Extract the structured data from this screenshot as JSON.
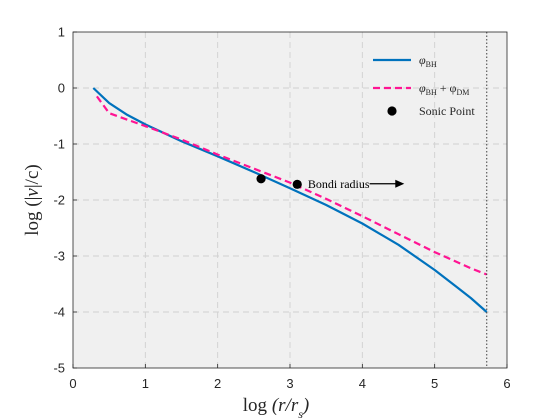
{
  "chart_data": {
    "type": "line",
    "xlabel": "log (r/r_s)",
    "ylabel": "log (|v|/c)",
    "xlim": [
      0,
      6
    ],
    "ylim": [
      -5,
      1
    ],
    "xticks": [
      0,
      1,
      2,
      3,
      4,
      5,
      6
    ],
    "yticks": [
      -5,
      -4,
      -3,
      -2,
      -1,
      0,
      1
    ],
    "grid": true,
    "background": "#f0f0f0",
    "legend_position": "top-right",
    "series": [
      {
        "name": "φ_BH",
        "color": "#0072bd",
        "style": "solid",
        "x": [
          0.28,
          0.5,
          0.75,
          1.0,
          1.5,
          2.0,
          2.5,
          3.0,
          3.5,
          4.0,
          4.5,
          5.0,
          5.3,
          5.5,
          5.72
        ],
        "y": [
          0.0,
          -0.27,
          -0.48,
          -0.65,
          -0.95,
          -1.22,
          -1.5,
          -1.79,
          -2.09,
          -2.42,
          -2.8,
          -3.25,
          -3.55,
          -3.75,
          -4.0
        ]
      },
      {
        "name": "φ_BH + φ_DM",
        "color": "#ff1493",
        "style": "dashed",
        "x": [
          0.33,
          0.5,
          1.0,
          1.5,
          2.0,
          2.5,
          3.0,
          3.5,
          4.0,
          4.5,
          5.0,
          5.5,
          5.72
        ],
        "y": [
          -0.15,
          -0.45,
          -0.68,
          -0.92,
          -1.19,
          -1.44,
          -1.69,
          -1.98,
          -2.29,
          -2.61,
          -2.93,
          -3.22,
          -3.33
        ]
      }
    ],
    "sonic_points": {
      "name": "Sonic Point",
      "color": "#000000",
      "points": [
        {
          "x": 2.6,
          "y": -1.62
        },
        {
          "x": 3.1,
          "y": -1.72
        }
      ]
    },
    "bondi": {
      "label": "Bondi radius",
      "x": 5.72,
      "arrow_from": [
        4.1,
        -1.71
      ],
      "arrow_to": [
        4.58,
        -1.71
      ]
    },
    "legend": [
      {
        "main": "φ",
        "sub": "BH",
        "extra_main": "",
        "extra_sub": ""
      },
      {
        "main": "φ",
        "sub": "BH",
        "extra_main": " + φ",
        "extra_sub": "DM"
      },
      {
        "main": "Sonic Point",
        "sub": "",
        "extra_main": "",
        "extra_sub": ""
      }
    ]
  }
}
